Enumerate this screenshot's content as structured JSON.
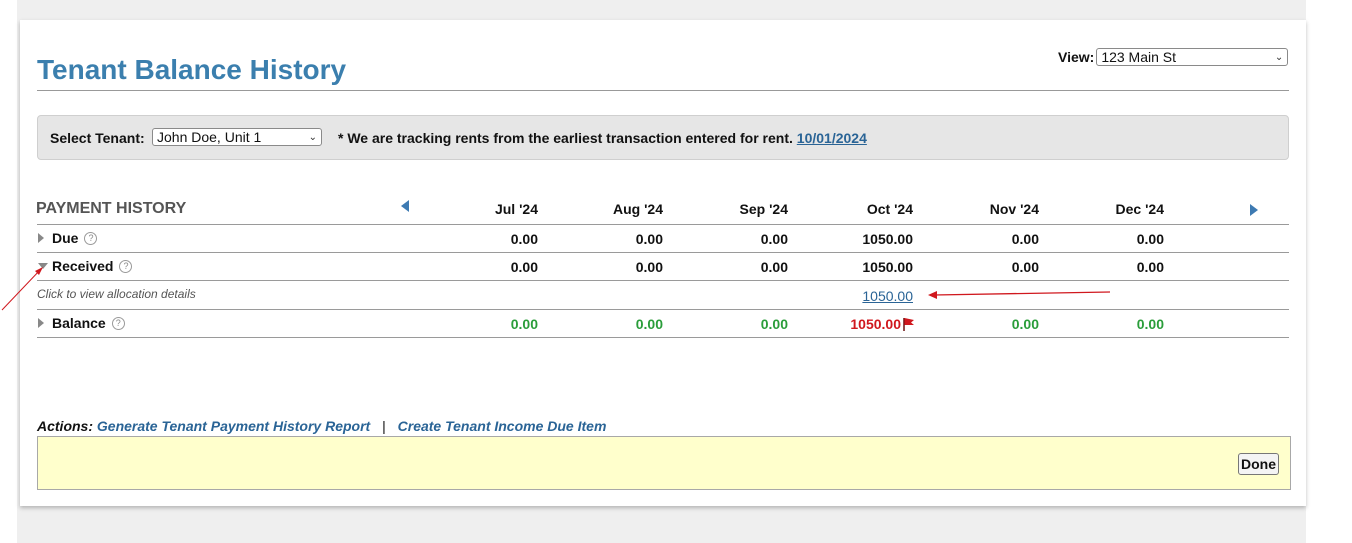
{
  "page": {
    "title": "Tenant Balance History",
    "view_label": "View:",
    "view_value": "123 Main St"
  },
  "tenant": {
    "label": "Select Tenant:",
    "value": "John Doe, Unit 1",
    "note": "* We are tracking rents from the earliest transaction entered for rent.",
    "start_date": "10/01/2024"
  },
  "history": {
    "heading": "PAYMENT HISTORY",
    "months": [
      "Jul '24",
      "Aug '24",
      "Sep '24",
      "Oct '24",
      "Nov '24",
      "Dec '24"
    ],
    "rows": {
      "due": {
        "label": "Due",
        "values": [
          "0.00",
          "0.00",
          "0.00",
          "1050.00",
          "0.00",
          "0.00"
        ]
      },
      "received": {
        "label": "Received",
        "values": [
          "0.00",
          "0.00",
          "0.00",
          "1050.00",
          "0.00",
          "0.00"
        ]
      },
      "balance": {
        "label": "Balance",
        "values": [
          "0.00",
          "0.00",
          "0.00",
          "1050.00",
          "0.00",
          "0.00"
        ]
      }
    },
    "allocation_note": "Click to view allocation details",
    "allocation_link": "1050.00"
  },
  "actions": {
    "label": "Actions:",
    "report_link": "Generate Tenant Payment History Report",
    "separator": "|",
    "create_link": "Create Tenant Income Due Item"
  },
  "buttons": {
    "done": "Done"
  },
  "colors": {
    "title": "#3b7fae",
    "link": "#2a6496",
    "positive": "#2a9d3a",
    "negative": "#d0181e",
    "action_box": "#ffffcc"
  },
  "icons": [
    "chevron-down-icon",
    "prev-arrow-icon",
    "next-arrow-icon",
    "expand-icon",
    "collapse-icon",
    "help-icon",
    "flag-icon"
  ]
}
